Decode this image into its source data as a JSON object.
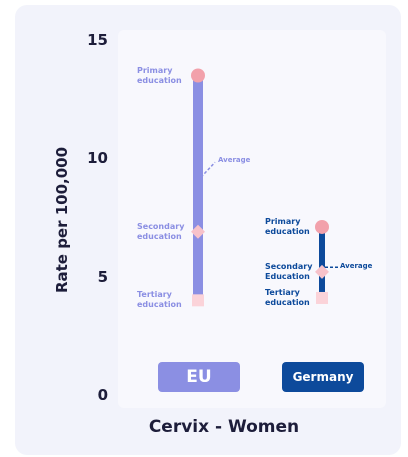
{
  "chart_data": {
    "type": "range",
    "title": "Cervix - Women",
    "y_label": "Rate per 100,000",
    "ylim": [
      0,
      15
    ],
    "yticks": [
      0,
      5,
      10,
      15
    ],
    "average_label": "Average",
    "marker_colors": [
      "#f2a1ab",
      "#f7c2ca",
      "#fbd3d9"
    ],
    "series": [
      {
        "name": "EU",
        "color": "#8b8fe3",
        "points": [
          {
            "label": "Primary education",
            "value": 13.5
          },
          {
            "label": "Secondary education",
            "value": 6.9
          },
          {
            "label": "Tertiary education",
            "value": 4.0
          }
        ],
        "average": 9.2
      },
      {
        "name": "Germany",
        "color": "#0d4a9b",
        "points": [
          {
            "label": "Primary education",
            "value": 7.1
          },
          {
            "label": "Secondary Education",
            "value": 5.2
          },
          {
            "label": "Tertiary education",
            "value": 4.1
          }
        ],
        "average": 5.4
      }
    ]
  }
}
